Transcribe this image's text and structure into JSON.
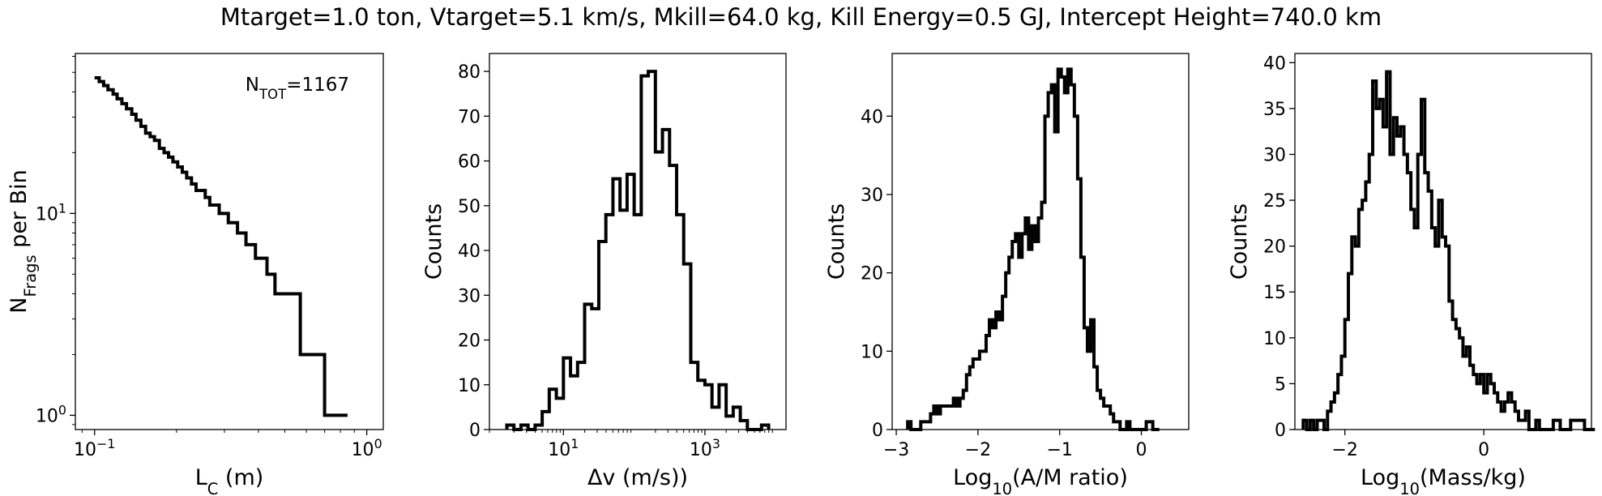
{
  "suptitle": "Mtarget=1.0 ton, Vtarget=5.1 km/s, Mkill=64.0 kg, Kill Energy=0.5 GJ, Intercept Height=740.0 km",
  "chart_data": [
    {
      "type": "line",
      "step": true,
      "xscale": "log",
      "yscale": "log",
      "xlabel": "L",
      "xlabel_sub": "C",
      "xlabel_tail": " (m)",
      "ylabel": "N",
      "ylabel_sub": "Frags",
      "ylabel_tail": " per Bin",
      "xlim": [
        0.085,
        1.15
      ],
      "ylim": [
        0.85,
        62
      ],
      "xtick_labels": [
        {
          "base": "10",
          "exp": "−1",
          "value": 0.1
        },
        {
          "base": "10",
          "exp": "0",
          "value": 1
        }
      ],
      "ytick_labels": [
        {
          "base": "10",
          "exp": "0",
          "value": 1
        },
        {
          "base": "10",
          "exp": "1",
          "value": 10
        }
      ],
      "annotation": {
        "main": "N",
        "sub": "TOT",
        "tail": "=1167",
        "position": "top-right"
      },
      "series": [
        {
          "x": [
            0.1,
            0.104,
            0.108,
            0.112,
            0.117,
            0.121,
            0.126,
            0.131,
            0.137,
            0.142,
            0.148,
            0.154,
            0.16,
            0.166,
            0.173,
            0.18,
            0.187,
            0.194,
            0.202,
            0.21,
            0.218,
            0.227,
            0.236,
            0.245,
            0.255,
            0.265,
            0.276,
            0.287,
            0.31,
            0.335,
            0.36,
            0.39,
            0.43,
            0.46,
            0.57,
            0.7,
            0.85
          ],
          "y": [
            47,
            45,
            43,
            41,
            39,
            37,
            35,
            33,
            31,
            29,
            27,
            25,
            24,
            23,
            21,
            20,
            19,
            18,
            17,
            16,
            15,
            14,
            13,
            13,
            12,
            11,
            11,
            10,
            9,
            8,
            7,
            6,
            5,
            4,
            2,
            1,
            1
          ]
        }
      ]
    },
    {
      "type": "histogram",
      "xscale": "log",
      "xlabel": "Δv (m/s))",
      "ylabel": "Counts",
      "xlim": [
        0.9,
        14000
      ],
      "ylim": [
        0,
        84
      ],
      "xtick_labels": [
        {
          "base": "10",
          "exp": "1",
          "value": 10
        },
        {
          "base": "10",
          "exp": "3",
          "value": 1000
        }
      ],
      "ytick_labels": [
        0,
        10,
        20,
        30,
        40,
        50,
        60,
        70,
        80
      ],
      "bin_edges_log10": [
        0.2,
        0.3,
        0.4,
        0.5,
        0.6,
        0.7,
        0.8,
        0.9,
        1.0,
        1.1,
        1.2,
        1.3,
        1.4,
        1.5,
        1.6,
        1.7,
        1.8,
        1.9,
        2.0,
        2.1,
        2.2,
        2.3,
        2.4,
        2.5,
        2.6,
        2.7,
        2.8,
        2.9,
        3.0,
        3.1,
        3.2,
        3.3,
        3.4,
        3.5,
        3.6,
        3.7,
        3.8,
        3.9
      ],
      "counts": [
        1,
        0,
        1,
        0,
        1,
        4,
        9,
        7,
        16,
        12,
        15,
        28,
        27,
        42,
        48,
        56,
        49,
        57,
        48,
        79,
        80,
        62,
        67,
        59,
        48,
        37,
        15,
        11,
        10,
        5,
        10,
        3,
        5,
        2,
        0,
        0,
        1
      ]
    },
    {
      "type": "histogram",
      "xlabel": "Log",
      "xlabel_sub": "10",
      "xlabel_tail": "(A/M ratio)",
      "ylabel": "Counts",
      "xlim": [
        -3.05,
        0.58
      ],
      "ylim": [
        0,
        48
      ],
      "xtick_labels": [
        -3,
        -2,
        -1,
        0
      ],
      "xtick_display": [
        "−3",
        "−2",
        "−1",
        "0"
      ],
      "ytick_labels": [
        0,
        10,
        20,
        30,
        40
      ],
      "bin_start": -2.86,
      "bin_width": 0.04,
      "counts": [
        1,
        0,
        0,
        0,
        1,
        1,
        1,
        2,
        3,
        2,
        3,
        3,
        3,
        3,
        4,
        3,
        4,
        5,
        7,
        8,
        9,
        9,
        10,
        10,
        12,
        14,
        13,
        15,
        14,
        17,
        20,
        22,
        24,
        25,
        22,
        25,
        27,
        23,
        26,
        24,
        27,
        29,
        40,
        43,
        44,
        38,
        46,
        45,
        43,
        46,
        44,
        40,
        32,
        22,
        13,
        10,
        14,
        8,
        5,
        4,
        3,
        3,
        2,
        1,
        1,
        0,
        0,
        1,
        0,
        0,
        0,
        0,
        0,
        1,
        1,
        0,
        0
      ]
    },
    {
      "type": "histogram",
      "xlabel": "Log",
      "xlabel_sub": "10",
      "xlabel_tail": "(Mass/kg)",
      "ylabel": "Counts",
      "xlim": [
        -2.72,
        1.55
      ],
      "ylim": [
        0,
        41
      ],
      "xtick_labels": [
        -2,
        0
      ],
      "xtick_display": [
        "−2",
        "0"
      ],
      "ytick_labels": [
        0,
        5,
        10,
        15,
        20,
        25,
        30,
        35,
        40
      ],
      "bin_start": -2.6,
      "bin_width": 0.05,
      "counts": [
        1,
        0,
        1,
        0,
        1,
        1,
        0,
        2,
        3,
        4,
        6,
        8,
        12,
        17,
        21,
        20,
        24,
        25,
        27,
        30,
        38,
        35,
        36,
        33,
        39,
        30,
        34,
        32,
        33,
        30,
        28,
        24,
        22,
        30,
        36,
        28,
        26,
        22,
        20,
        25,
        21,
        20,
        14,
        12,
        11,
        10,
        8,
        9,
        7,
        6,
        5,
        6,
        4,
        6,
        5,
        4,
        3,
        2,
        3,
        4,
        3,
        2,
        1,
        1,
        2,
        0,
        0,
        1,
        0,
        0,
        0,
        0,
        1,
        1,
        0,
        0,
        0,
        1,
        1,
        1,
        1,
        0,
        0,
        0
      ]
    }
  ]
}
